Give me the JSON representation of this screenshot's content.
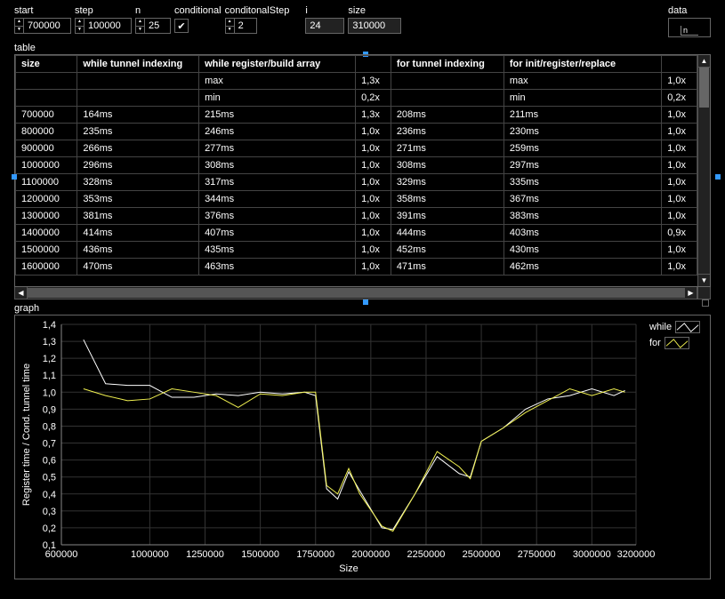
{
  "controls": {
    "start": {
      "label": "start",
      "value": "700000",
      "width": 54
    },
    "step": {
      "label": "step",
      "value": "100000",
      "width": 54
    },
    "n": {
      "label": "n",
      "value": "25",
      "width": 32
    },
    "conditional": {
      "label": "conditional",
      "checked": true
    },
    "conditionalStep": {
      "label": "conditonalStep",
      "value": "2",
      "width": 28
    },
    "i": {
      "label": "i",
      "value": "24",
      "width": 40
    },
    "size": {
      "label": "size",
      "value": "310000",
      "width": 54
    },
    "data": {
      "label": "data",
      "value": "n"
    }
  },
  "table": {
    "label": "table",
    "headers": [
      "size",
      "while tunnel indexing",
      "while register/build array",
      "",
      "for tunnel indexing",
      "for init/register/replace",
      ""
    ],
    "preRows": [
      [
        "",
        "",
        "max",
        "1,3x",
        "",
        "max",
        "1,0x"
      ],
      [
        "",
        "",
        "min",
        "0,2x",
        "",
        "min",
        "0,2x"
      ]
    ],
    "rows": [
      [
        "700000",
        "164ms",
        "215ms",
        "1,3x",
        "208ms",
        "211ms",
        "1,0x"
      ],
      [
        "800000",
        "235ms",
        "246ms",
        "1,0x",
        "236ms",
        "230ms",
        "1,0x"
      ],
      [
        "900000",
        "266ms",
        "277ms",
        "1,0x",
        "271ms",
        "259ms",
        "1,0x"
      ],
      [
        "1000000",
        "296ms",
        "308ms",
        "1,0x",
        "308ms",
        "297ms",
        "1,0x"
      ],
      [
        "1100000",
        "328ms",
        "317ms",
        "1,0x",
        "329ms",
        "335ms",
        "1,0x"
      ],
      [
        "1200000",
        "353ms",
        "344ms",
        "1,0x",
        "358ms",
        "367ms",
        "1,0x"
      ],
      [
        "1300000",
        "381ms",
        "376ms",
        "1,0x",
        "391ms",
        "383ms",
        "1,0x"
      ],
      [
        "1400000",
        "414ms",
        "407ms",
        "1,0x",
        "444ms",
        "403ms",
        "0,9x"
      ],
      [
        "1500000",
        "436ms",
        "435ms",
        "1,0x",
        "452ms",
        "430ms",
        "1,0x"
      ],
      [
        "1600000",
        "470ms",
        "463ms",
        "1,0x",
        "471ms",
        "462ms",
        "1,0x"
      ]
    ]
  },
  "graph": {
    "label": "graph",
    "xlabel": "Size",
    "ylabel": "Register time / Cond. tunnel time",
    "xlim": [
      600000,
      3200000
    ],
    "ylim": [
      0.1,
      1.4
    ],
    "xticks": [
      600000,
      1000000,
      1250000,
      1500000,
      1750000,
      2000000,
      2250000,
      2500000,
      2750000,
      3000000,
      3200000
    ],
    "yticks": [
      0.1,
      0.2,
      0.3,
      0.4,
      0.5,
      0.6,
      0.7,
      0.8,
      0.9,
      1.0,
      1.1,
      1.2,
      1.3,
      1.4
    ],
    "grid_color": "#333333",
    "axis_color": "#888888",
    "background_color": "#000000",
    "series": [
      {
        "name": "while",
        "color": "#ffffff",
        "points": [
          [
            700000,
            1.31
          ],
          [
            800000,
            1.05
          ],
          [
            900000,
            1.04
          ],
          [
            1000000,
            1.04
          ],
          [
            1100000,
            0.97
          ],
          [
            1200000,
            0.97
          ],
          [
            1300000,
            0.99
          ],
          [
            1400000,
            0.98
          ],
          [
            1500000,
            1.0
          ],
          [
            1600000,
            0.99
          ],
          [
            1700000,
            1.0
          ],
          [
            1750000,
            0.98
          ],
          [
            1800000,
            0.43
          ],
          [
            1850000,
            0.37
          ],
          [
            1900000,
            0.53
          ],
          [
            1950000,
            0.42
          ],
          [
            2050000,
            0.2
          ],
          [
            2100000,
            0.19
          ],
          [
            2200000,
            0.4
          ],
          [
            2300000,
            0.62
          ],
          [
            2400000,
            0.52
          ],
          [
            2450000,
            0.5
          ],
          [
            2500000,
            0.71
          ],
          [
            2600000,
            0.79
          ],
          [
            2700000,
            0.9
          ],
          [
            2800000,
            0.96
          ],
          [
            2900000,
            0.98
          ],
          [
            3000000,
            1.02
          ],
          [
            3100000,
            0.98
          ],
          [
            3150000,
            1.01
          ]
        ]
      },
      {
        "name": "for",
        "color": "#f2f251",
        "points": [
          [
            700000,
            1.02
          ],
          [
            800000,
            0.98
          ],
          [
            900000,
            0.95
          ],
          [
            1000000,
            0.96
          ],
          [
            1100000,
            1.02
          ],
          [
            1200000,
            1.0
          ],
          [
            1300000,
            0.98
          ],
          [
            1400000,
            0.91
          ],
          [
            1500000,
            0.99
          ],
          [
            1600000,
            0.98
          ],
          [
            1700000,
            1.0
          ],
          [
            1750000,
            1.0
          ],
          [
            1800000,
            0.45
          ],
          [
            1850000,
            0.4
          ],
          [
            1900000,
            0.55
          ],
          [
            1950000,
            0.4
          ],
          [
            2050000,
            0.21
          ],
          [
            2100000,
            0.18
          ],
          [
            2200000,
            0.4
          ],
          [
            2300000,
            0.65
          ],
          [
            2400000,
            0.56
          ],
          [
            2450000,
            0.49
          ],
          [
            2500000,
            0.71
          ],
          [
            2600000,
            0.79
          ],
          [
            2700000,
            0.88
          ],
          [
            2800000,
            0.95
          ],
          [
            2900000,
            1.02
          ],
          [
            3000000,
            0.98
          ],
          [
            3100000,
            1.02
          ],
          [
            3150000,
            1.0
          ]
        ]
      }
    ],
    "legend": [
      {
        "label": "while",
        "color": "#ffffff"
      },
      {
        "label": "for",
        "color": "#f2f251"
      }
    ]
  }
}
